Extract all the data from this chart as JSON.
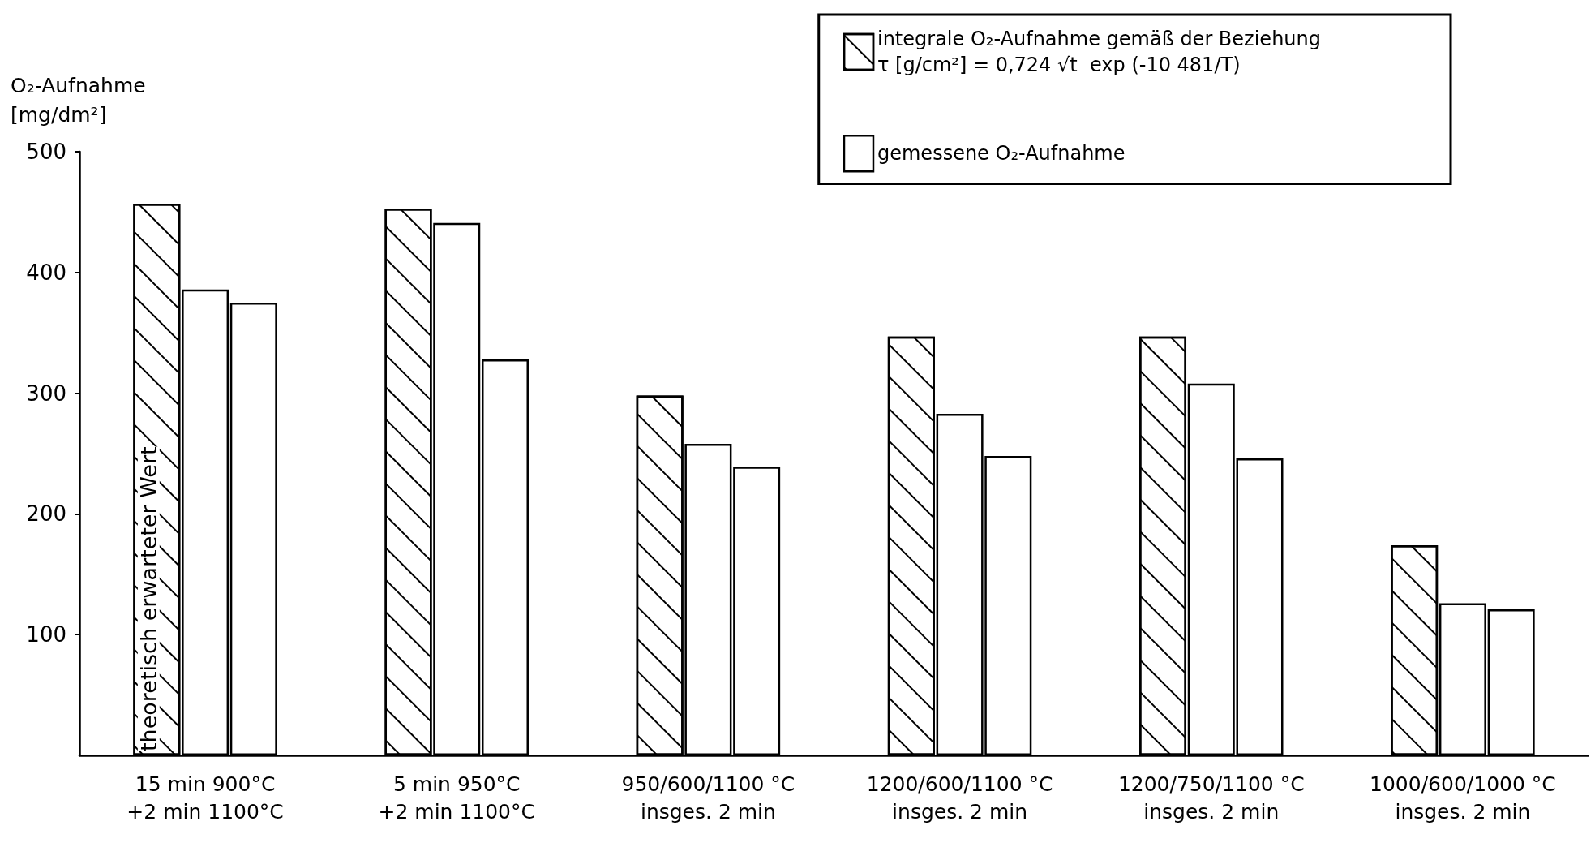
{
  "chart_data": {
    "type": "bar",
    "ylabel": "O₂-Aufnahme\n[mg/dm²]",
    "categories": [
      "15 min 900°C\n+2 min 1100°C",
      "5 min 950°C\n+2 min 1100°C",
      "950/600/1100 °C\ninsges. 2 min",
      "1200/600/1100 °C\ninsges. 2 min",
      "1200/750/1100 °C\ninsges. 2 min",
      "1000/600/1000 °C\ninsges. 2 min"
    ],
    "series": [
      {
        "name": "integrale O₂-Aufnahme gemäß der Beziehung\nτ [g/cm²] = 0,724 √t  exp (-10 481/T)",
        "color": "#ffffff",
        "values": [
          457,
          453,
          298,
          347,
          347,
          174
        ]
      },
      {
        "name": "gemessene O₂-Aufnahme",
        "color": "#ffffff",
        "values": [
          386,
          441,
          258,
          283,
          308,
          126
        ]
      },
      {
        "color": "#ffffff",
        "values": [
          375,
          328,
          239,
          248,
          246,
          121
        ]
      }
    ],
    "annotations": [
      "theoretisch erwarteter Wert"
    ],
    "ylim": [
      0,
      500
    ],
    "yticks": [
      100,
      200,
      300,
      400,
      500
    ],
    "grid": false,
    "legend": "top right"
  }
}
